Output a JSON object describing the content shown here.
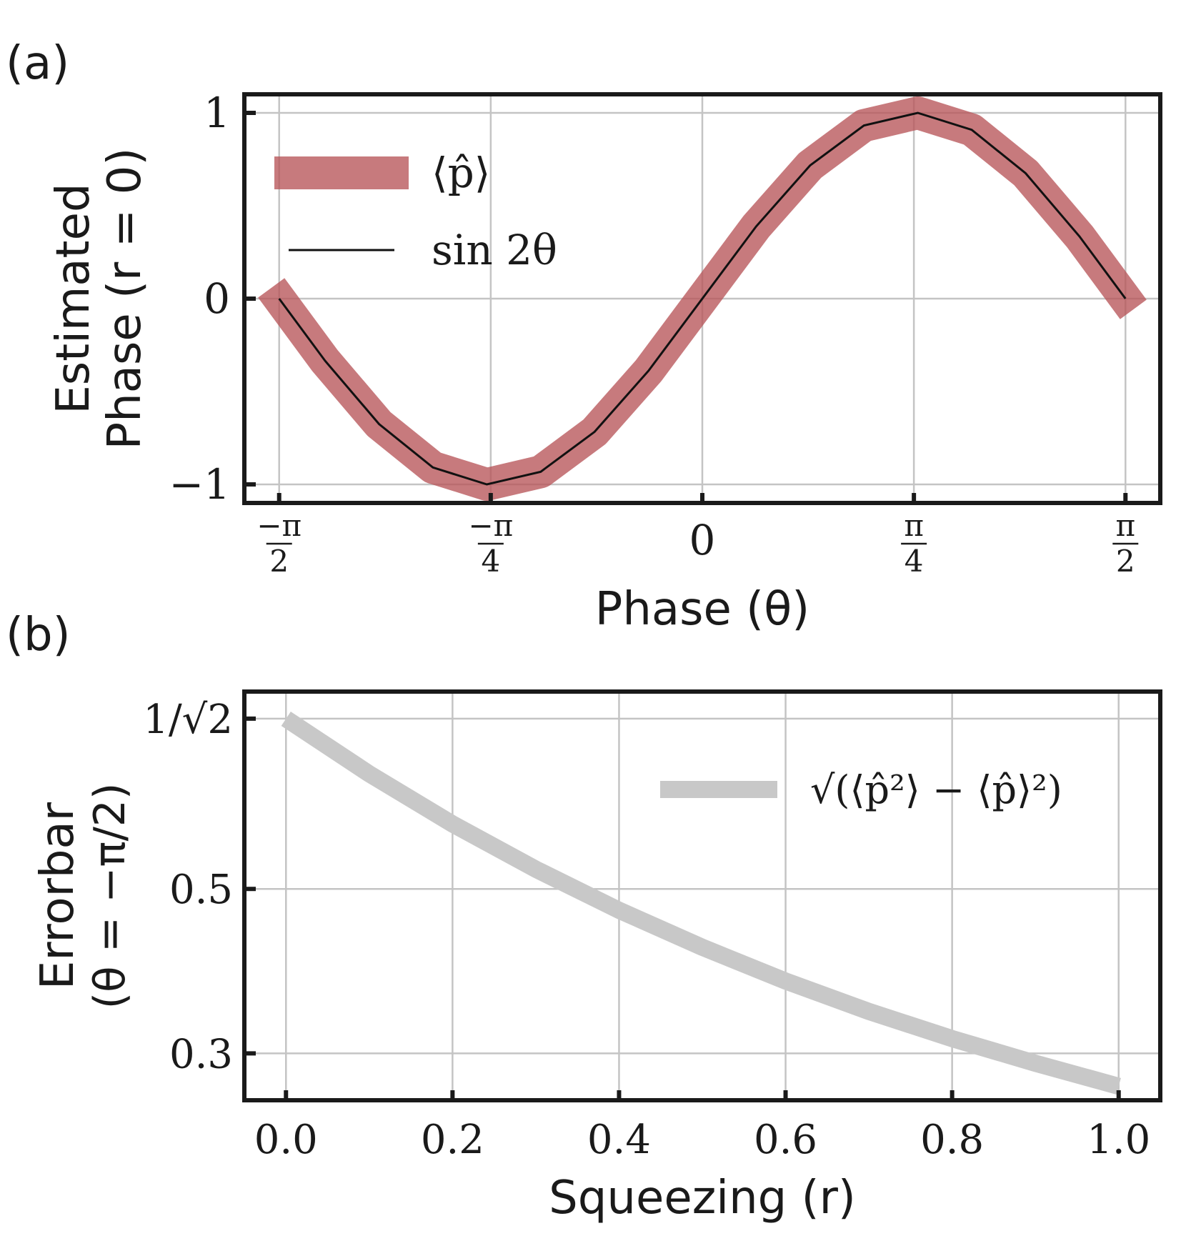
{
  "chart_data": [
    {
      "panel": "(a)",
      "type": "line",
      "xlabel": "Phase (θ)",
      "ylabel_line1": "Estimated",
      "ylabel_line2": "Phase (r = 0)",
      "xlim": [
        -1.7,
        1.7
      ],
      "ylim": [
        -1.1,
        1.1
      ],
      "xticks": [
        {
          "value": -1.5708,
          "num": "−π",
          "den": "2"
        },
        {
          "value": -0.7854,
          "num": "−π",
          "den": "4"
        },
        {
          "value": 0,
          "num": "0",
          "den": ""
        },
        {
          "value": 0.7854,
          "num": "π",
          "den": "4"
        },
        {
          "value": 1.5708,
          "num": "π",
          "den": "2"
        }
      ],
      "yticks": [
        {
          "value": -1,
          "label": "−1"
        },
        {
          "value": 0,
          "label": "0"
        },
        {
          "value": 1,
          "label": "1"
        }
      ],
      "grid": true,
      "legend_position": "top-left",
      "series": [
        {
          "name": "⟨p̂⟩",
          "color": "#b75558",
          "x": [
            -1.6,
            -1.4,
            -1.2,
            -1.0,
            -0.8,
            -0.6,
            -0.4,
            -0.2,
            0.0,
            0.2,
            0.4,
            0.6,
            0.8,
            1.0,
            1.2,
            1.4,
            1.6
          ],
          "values": [
            0.058,
            -0.335,
            -0.675,
            -0.909,
            -1.0,
            -0.932,
            -0.717,
            -0.389,
            0.0,
            0.389,
            0.717,
            0.932,
            1.0,
            0.909,
            0.675,
            0.335,
            -0.058
          ]
        },
        {
          "name": "sin 2θ",
          "color": "#111111",
          "x": [
            -1.5708,
            -1.4,
            -1.2,
            -1.0,
            -0.8,
            -0.6,
            -0.4,
            -0.2,
            0.0,
            0.2,
            0.4,
            0.6,
            0.8,
            1.0,
            1.2,
            1.4,
            1.5708
          ],
          "values": [
            0.0,
            -0.335,
            -0.675,
            -0.909,
            -1.0,
            -0.932,
            -0.717,
            -0.389,
            0.0,
            0.389,
            0.717,
            0.932,
            1.0,
            0.909,
            0.675,
            0.335,
            0.0
          ]
        }
      ]
    },
    {
      "panel": "(b)",
      "type": "line",
      "xlabel": "Squeezing (r)",
      "ylabel_line1": "Errorbar",
      "ylabel_line2": "(θ = −π/2)",
      "xlim": [
        -0.05,
        1.05
      ],
      "ylim": [
        0.243,
        0.74
      ],
      "xticks": [
        {
          "value": 0.0,
          "label": "0.0"
        },
        {
          "value": 0.2,
          "label": "0.2"
        },
        {
          "value": 0.4,
          "label": "0.4"
        },
        {
          "value": 0.6,
          "label": "0.6"
        },
        {
          "value": 0.8,
          "label": "0.8"
        },
        {
          "value": 1.0,
          "label": "1.0"
        }
      ],
      "yticks": [
        {
          "value": 0.3,
          "label": "0.3"
        },
        {
          "value": 0.5,
          "label": "0.5"
        },
        {
          "value": 0.7071,
          "label": "1/√2"
        }
      ],
      "grid": true,
      "legend_position": "top-right",
      "series": [
        {
          "name": "√(⟨p̂²⟩ − ⟨p̂⟩²)",
          "color": "#c8c8c8",
          "x": [
            0.0,
            0.1,
            0.2,
            0.3,
            0.4,
            0.5,
            0.6,
            0.7,
            0.8,
            0.9,
            1.0
          ],
          "values": [
            0.707,
            0.64,
            0.579,
            0.524,
            0.474,
            0.429,
            0.388,
            0.351,
            0.318,
            0.288,
            0.26
          ]
        }
      ]
    }
  ]
}
